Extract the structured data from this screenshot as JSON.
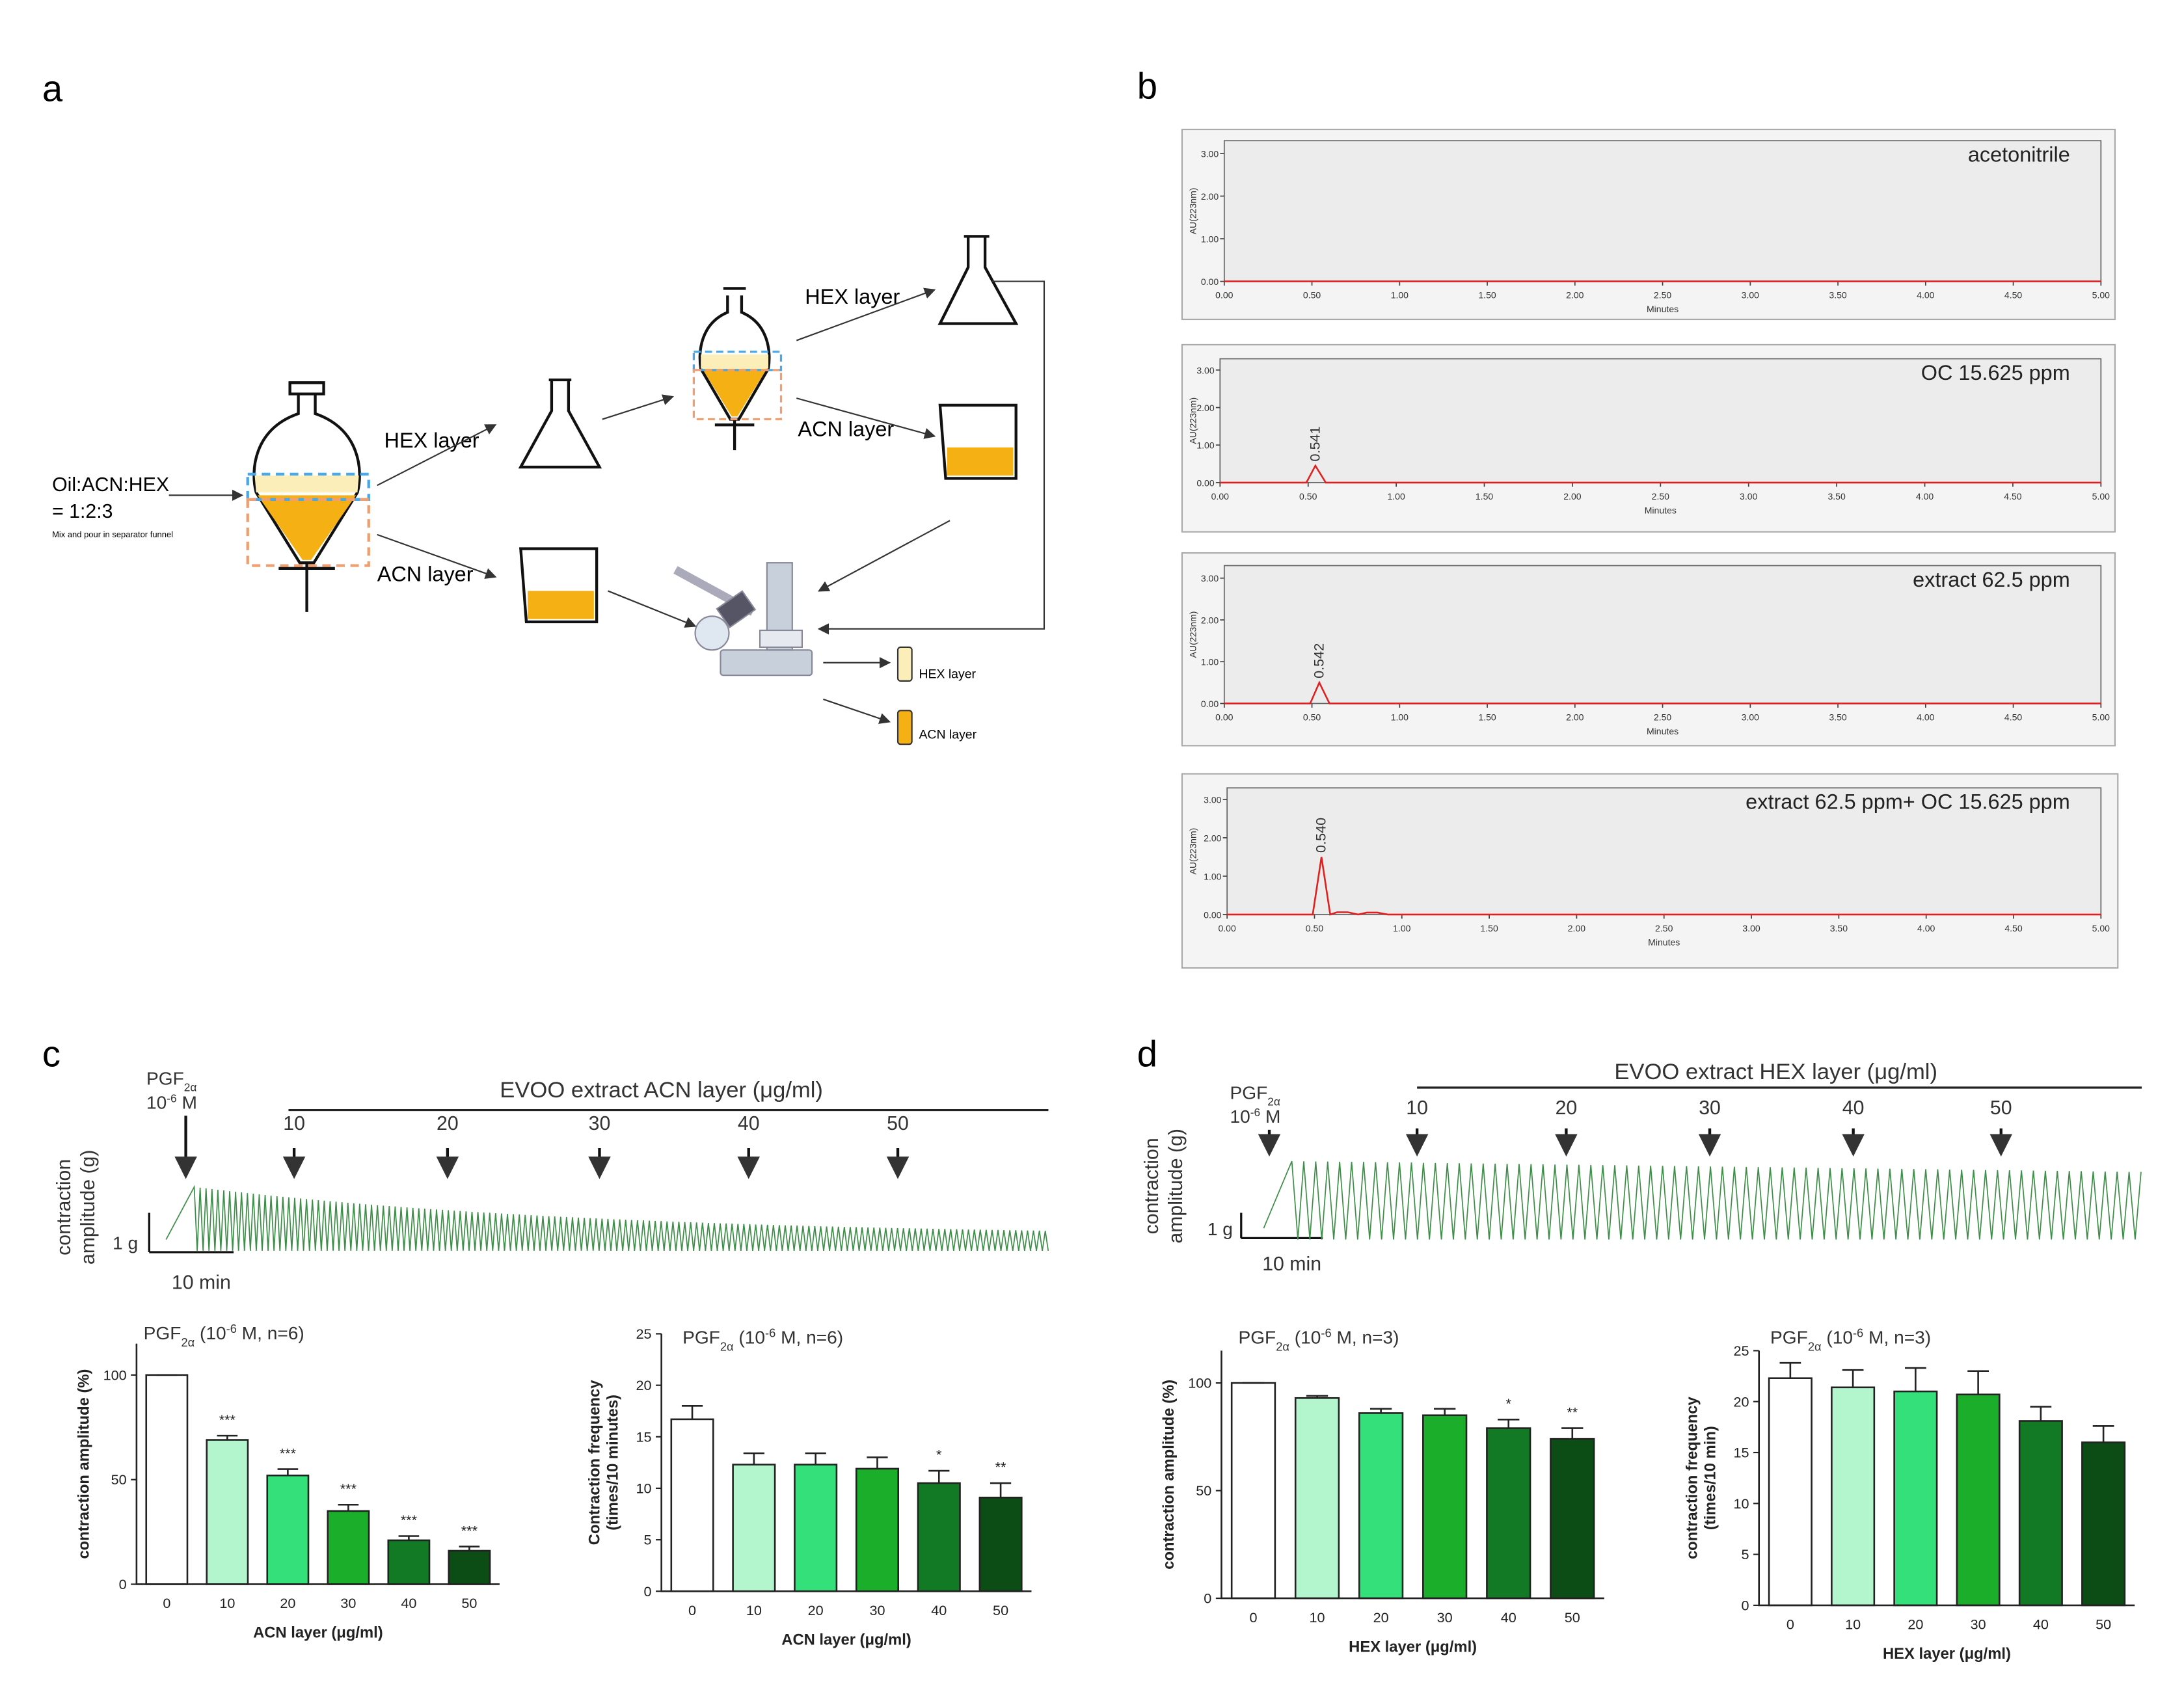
{
  "panel_labels": [
    "a",
    "b",
    "c",
    "d"
  ],
  "diagram": {
    "input": [
      "Oil:ACN:HEX",
      "= 1:2:3"
    ],
    "input_note": "Mix and pour in separator funnel",
    "hex_label": "HEX layer",
    "acn_label": "ACN layer",
    "hex_label_2": "HEX layer",
    "acn_label_2": "ACN layer",
    "hex_product": "HEX layer",
    "acn_product": "ACN layer"
  },
  "traces": [
    {
      "header": "EVOO extract ACN layer (μg/ml)",
      "stimulus": [
        "PGF",
        "2α",
        "10",
        "-6",
        " M"
      ],
      "doses": [
        "10",
        "20",
        "30",
        "40",
        "50"
      ],
      "ylabel": [
        "contraction",
        "amplitude (g)"
      ],
      "scale_y": "1 g",
      "scale_x": "10 min"
    },
    {
      "header": "EVOO extract HEX layer (μg/ml)",
      "stimulus": [
        "PGF",
        "2α",
        "10",
        "-6",
        " M"
      ],
      "doses": [
        "10",
        "20",
        "30",
        "40",
        "50"
      ],
      "ylabel": [
        "contraction",
        "amplitude (g)"
      ],
      "scale_y": "1 g",
      "scale_x": "10 min"
    }
  ],
  "chart_data": [
    {
      "type": "line",
      "title": "acetonitrile",
      "xlabel": "Minutes",
      "ylabel": "AU(223nm)",
      "xlim": [
        0,
        5
      ],
      "ylim": [
        0,
        3.3
      ],
      "xticks": [
        {
          "value": 0,
          "label": "0.00"
        },
        {
          "value": 0.5,
          "label": "0.50"
        },
        {
          "value": 1,
          "label": "1.00"
        },
        {
          "value": 1.5,
          "label": "1.50"
        },
        {
          "value": 2,
          "label": "2.00"
        },
        {
          "value": 2.5,
          "label": "2.50"
        },
        {
          "value": 3,
          "label": "3.00"
        },
        {
          "value": 3.5,
          "label": "3.50"
        },
        {
          "value": 4,
          "label": "4.00"
        },
        {
          "value": 4.5,
          "label": "4.50"
        },
        {
          "value": 5,
          "label": "5.00"
        }
      ],
      "yticks": [
        {
          "value": 0,
          "label": "0.00"
        },
        {
          "value": 1,
          "label": "1.00"
        },
        {
          "value": 2,
          "label": "2.00"
        },
        {
          "value": 3,
          "label": "3.00"
        }
      ],
      "series": [
        {
          "color": "#e02020",
          "x": [
            0,
            5
          ],
          "values": [
            0,
            0
          ]
        }
      ],
      "annotations": []
    },
    {
      "type": "line",
      "title": "OC 15.625 ppm",
      "xlabel": "Minutes",
      "ylabel": "AU(223nm)",
      "xlim": [
        0,
        5
      ],
      "ylim": [
        0,
        3.3
      ],
      "xticks": [
        {
          "value": 0,
          "label": "0.00"
        },
        {
          "value": 0.5,
          "label": "0.50"
        },
        {
          "value": 1,
          "label": "1.00"
        },
        {
          "value": 1.5,
          "label": "1.50"
        },
        {
          "value": 2,
          "label": "2.00"
        },
        {
          "value": 2.5,
          "label": "2.50"
        },
        {
          "value": 3,
          "label": "3.00"
        },
        {
          "value": 3.5,
          "label": "3.50"
        },
        {
          "value": 4,
          "label": "4.00"
        },
        {
          "value": 4.5,
          "label": "4.50"
        },
        {
          "value": 5,
          "label": "5.00"
        }
      ],
      "yticks": [
        {
          "value": 0,
          "label": "0.00"
        },
        {
          "value": 1,
          "label": "1.00"
        },
        {
          "value": 2,
          "label": "2.00"
        },
        {
          "value": 3,
          "label": "3.00"
        }
      ],
      "series": [
        {
          "color": "#e02020",
          "x": [
            0,
            0.49,
            0.541,
            0.6,
            5
          ],
          "values": [
            0,
            0,
            0.45,
            0,
            0
          ]
        }
      ],
      "annotations": [
        {
          "x": 0.541,
          "text": "0.541"
        }
      ]
    },
    {
      "type": "line",
      "title": "extract 62.5 ppm",
      "xlabel": "Minutes",
      "ylabel": "AU(223nm)",
      "xlim": [
        0,
        5
      ],
      "ylim": [
        0,
        3.3
      ],
      "xticks": [
        {
          "value": 0,
          "label": "0.00"
        },
        {
          "value": 0.5,
          "label": "0.50"
        },
        {
          "value": 1,
          "label": "1.00"
        },
        {
          "value": 1.5,
          "label": "1.50"
        },
        {
          "value": 2,
          "label": "2.00"
        },
        {
          "value": 2.5,
          "label": "2.50"
        },
        {
          "value": 3,
          "label": "3.00"
        },
        {
          "value": 3.5,
          "label": "3.50"
        },
        {
          "value": 4,
          "label": "4.00"
        },
        {
          "value": 4.5,
          "label": "4.50"
        },
        {
          "value": 5,
          "label": "5.00"
        }
      ],
      "yticks": [
        {
          "value": 0,
          "label": "0.00"
        },
        {
          "value": 1,
          "label": "1.00"
        },
        {
          "value": 2,
          "label": "2.00"
        },
        {
          "value": 3,
          "label": "3.00"
        }
      ],
      "series": [
        {
          "color": "#e02020",
          "x": [
            0,
            0.49,
            0.542,
            0.6,
            5
          ],
          "values": [
            0,
            0,
            0.5,
            0,
            0
          ]
        }
      ],
      "annotations": [
        {
          "x": 0.542,
          "text": "0.542"
        }
      ]
    },
    {
      "type": "line",
      "title": "extract 62.5 ppm+ OC 15.625 ppm",
      "xlabel": "Minutes",
      "ylabel": "AU(223nm)",
      "xlim": [
        0,
        5
      ],
      "ylim": [
        0,
        3.3
      ],
      "xticks": [
        {
          "value": 0,
          "label": "0.00"
        },
        {
          "value": 0.5,
          "label": "0.50"
        },
        {
          "value": 1,
          "label": "1.00"
        },
        {
          "value": 1.5,
          "label": "1.50"
        },
        {
          "value": 2,
          "label": "2.00"
        },
        {
          "value": 2.5,
          "label": "2.50"
        },
        {
          "value": 3,
          "label": "3.00"
        },
        {
          "value": 3.5,
          "label": "3.50"
        },
        {
          "value": 4,
          "label": "4.00"
        },
        {
          "value": 4.5,
          "label": "4.50"
        },
        {
          "value": 5,
          "label": "5.00"
        }
      ],
      "yticks": [
        {
          "value": 0,
          "label": "0.00"
        },
        {
          "value": 1,
          "label": "1.00"
        },
        {
          "value": 2,
          "label": "2.00"
        },
        {
          "value": 3,
          "label": "3.00"
        }
      ],
      "series": [
        {
          "color": "#e02020",
          "x": [
            0,
            0.49,
            0.54,
            0.59,
            0.63,
            0.69,
            0.75,
            0.8,
            0.86,
            0.92,
            5
          ],
          "values": [
            0,
            0,
            1.5,
            0,
            0.06,
            0.06,
            0,
            0.05,
            0.05,
            0,
            0
          ]
        }
      ],
      "annotations": [
        {
          "x": 0.54,
          "text": "0.540"
        }
      ]
    },
    {
      "type": "bar",
      "title": [
        "PGF",
        "2α",
        " (10",
        "-6",
        " M, n=6)"
      ],
      "categories": [
        "0",
        "10",
        "20",
        "30",
        "40",
        "50"
      ],
      "values": [
        100,
        69,
        52,
        35,
        21,
        16
      ],
      "errors": [
        0,
        2,
        3,
        3,
        2,
        2
      ],
      "significance": [
        null,
        "***",
        "***",
        "***",
        "***",
        "***"
      ],
      "colors": [
        "#ffffff",
        "#b3f5cd",
        "#33e07a",
        "#1aae2a",
        "#127a25",
        "#0b4d14"
      ],
      "xlabel": "ACN layer (μg/ml)",
      "ylabel": [
        "contraction amplitude (%)"
      ],
      "ylim": [
        0,
        115
      ],
      "yticks": [
        0,
        50,
        100
      ]
    },
    {
      "type": "bar",
      "title": [
        "PGF",
        "2α",
        " (10",
        "-6",
        " M, n=6)"
      ],
      "categories": [
        "0",
        "10",
        "20",
        "30",
        "40",
        "50"
      ],
      "values": [
        16.7,
        12.3,
        12.3,
        11.9,
        10.5,
        9.1
      ],
      "errors": [
        1.3,
        1.1,
        1.1,
        1.1,
        1.2,
        1.4
      ],
      "significance": [
        null,
        null,
        null,
        null,
        "*",
        "**"
      ],
      "colors": [
        "#ffffff",
        "#b3f5cd",
        "#33e07a",
        "#1aae2a",
        "#127a25",
        "#0b4d14"
      ],
      "xlabel": "ACN layer (μg/ml)",
      "ylabel": [
        "Contraction frequency",
        "(times/10 minutes)"
      ],
      "ylim": [
        0,
        25
      ],
      "yticks": [
        0,
        5,
        10,
        15,
        20,
        25
      ]
    },
    {
      "type": "bar",
      "title": [
        "PGF",
        "2α",
        " (10",
        "-6",
        " M, n=3)"
      ],
      "categories": [
        "0",
        "10",
        "20",
        "30",
        "40",
        "50"
      ],
      "values": [
        100,
        93,
        86,
        85,
        79,
        74
      ],
      "errors": [
        0,
        1,
        2,
        3,
        4,
        5
      ],
      "significance": [
        null,
        null,
        null,
        null,
        "*",
        "**"
      ],
      "colors": [
        "#ffffff",
        "#b3f5cd",
        "#33e07a",
        "#1aae2a",
        "#127a25",
        "#0b4d14"
      ],
      "xlabel": "HEX layer (μg/ml)",
      "ylabel": [
        "contraction amplitude (%)"
      ],
      "ylim": [
        0,
        115
      ],
      "yticks": [
        0,
        50,
        100
      ]
    },
    {
      "type": "bar",
      "title": [
        "PGF",
        "2α",
        " (10",
        "-6",
        " M, n=3)"
      ],
      "categories": [
        "0",
        "10",
        "20",
        "30",
        "40",
        "50"
      ],
      "values": [
        22.3,
        21.4,
        21.0,
        20.7,
        18.1,
        16.0
      ],
      "errors": [
        1.5,
        1.7,
        2.3,
        2.3,
        1.4,
        1.6
      ],
      "significance": [
        null,
        null,
        null,
        null,
        null,
        null
      ],
      "colors": [
        "#ffffff",
        "#b3f5cd",
        "#33e07a",
        "#1aae2a",
        "#127a25",
        "#0b4d14"
      ],
      "xlabel": "HEX layer (μg/ml)",
      "ylabel": [
        "contraction frequency",
        "(times/10 min)"
      ],
      "ylim": [
        0,
        25
      ],
      "yticks": [
        0,
        5,
        10,
        15,
        20,
        25
      ]
    }
  ]
}
